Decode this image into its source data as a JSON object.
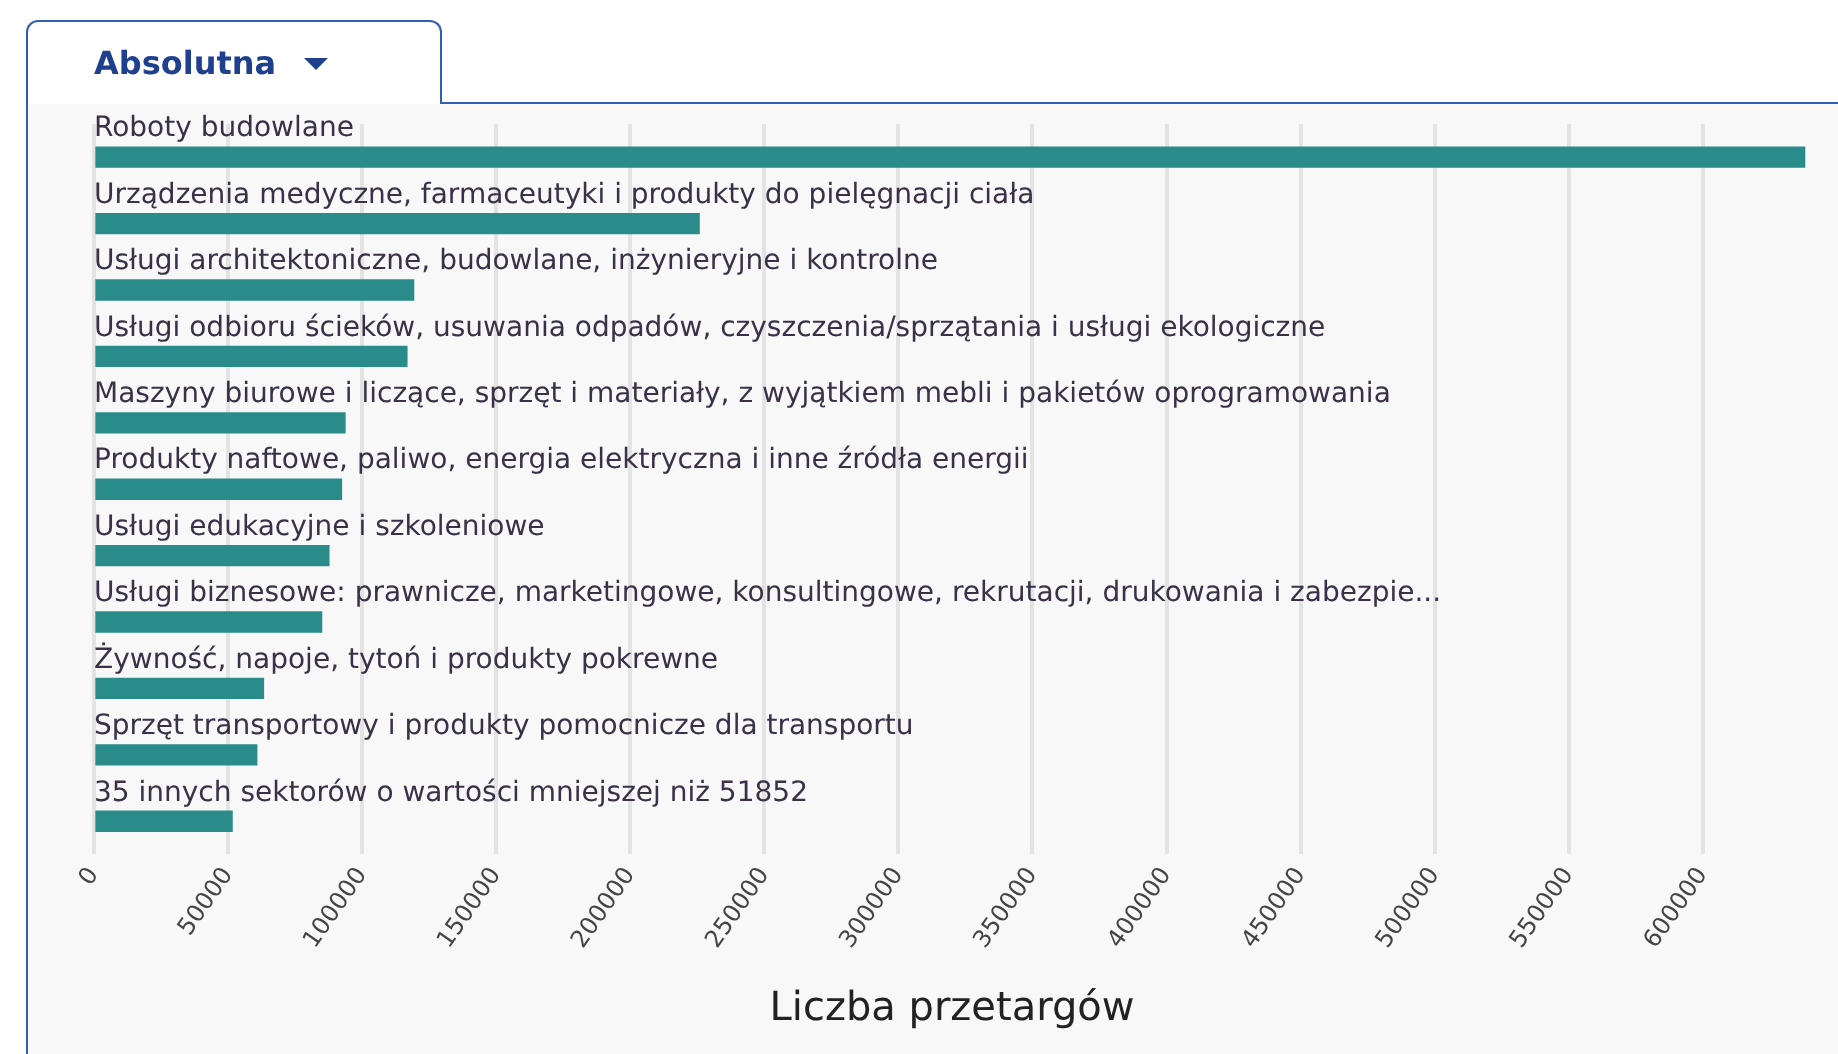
{
  "chart_data": {
    "type": "bar",
    "orientation": "horizontal",
    "xlabel": "Liczba przetargów",
    "annotations": [
      "Absolutna"
    ],
    "categories": [
      "Roboty budowlane",
      "Urządzenia medyczne, farmaceutyki i produkty do pielęgnacji ciała",
      "Usługi architektoniczne, budowlane, inżynieryjne i kontrolne",
      "Usługi odbioru ścieków, usuwania odpadów, czyszczenia/sprzątania i usługi ekologiczne",
      "Maszyny biurowe i liczące, sprzęt i materiały, z wyjątkiem mebli i pakietów oprogramowania",
      "Produkty naftowe, paliwo, energia elektryczna i inne źródła energii",
      "Usługi edukacyjne i szkoleniowe",
      "Usługi biznesowe: prawnicze, marketingowe, konsultingowe, rekrutacji, drukowania i zabezpie...",
      "Żywność, napoje, tytoń i produkty pokrewne",
      "Sprzęt transportowy i produkty pomocnicze dla transportu",
      "35 innych sektorów o wartości mniejszej niż 51852"
    ],
    "values": [
      638000,
      225700,
      119200,
      116700,
      93600,
      92300,
      87600,
      84900,
      63200,
      60700,
      51500
    ],
    "color": "#2a8c8a",
    "xlim": [
      0,
      640000
    ],
    "xticks": [
      0,
      50000,
      100000,
      150000,
      200000,
      250000,
      300000,
      350000,
      400000,
      450000,
      500000,
      550000,
      600000
    ],
    "grid": "x",
    "legend": false
  }
}
